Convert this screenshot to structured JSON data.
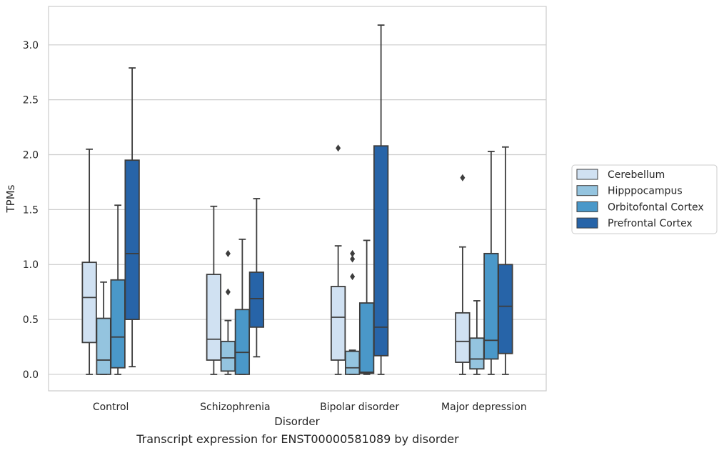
{
  "chart_data": {
    "type": "box",
    "caption": "Transcript expression for ENST00000581089 by disorder",
    "xlabel": "Disorder",
    "ylabel": "TPMs",
    "ylim": [
      -0.15,
      3.35
    ],
    "yticks": [
      0.0,
      0.5,
      1.0,
      1.5,
      2.0,
      2.5,
      3.0
    ],
    "ytick_labels": [
      "0.0",
      "0.5",
      "1.0",
      "1.5",
      "2.0",
      "2.5",
      "3.0"
    ],
    "grid": "horizontal",
    "legend_position": "right",
    "categories": [
      "Control",
      "Schizophrenia",
      "Bipolar disorder",
      "Major depression"
    ],
    "series": [
      {
        "name": "Cerebellum",
        "color": "#d0e1f2",
        "boxes": [
          {
            "whislo": 0.0,
            "q1": 0.29,
            "median": 0.7,
            "q3": 1.02,
            "whishi": 2.05,
            "fliers": []
          },
          {
            "whislo": 0.0,
            "q1": 0.13,
            "median": 0.32,
            "q3": 0.91,
            "whishi": 1.53,
            "fliers": []
          },
          {
            "whislo": 0.0,
            "q1": 0.13,
            "median": 0.52,
            "q3": 0.8,
            "whishi": 1.17,
            "fliers": [
              2.06
            ]
          },
          {
            "whislo": 0.0,
            "q1": 0.11,
            "median": 0.3,
            "q3": 0.56,
            "whishi": 1.16,
            "fliers": [
              1.79
            ]
          }
        ]
      },
      {
        "name": "Hipppocampus",
        "color": "#94c4df",
        "boxes": [
          {
            "whislo": 0.0,
            "q1": 0.0,
            "median": 0.13,
            "q3": 0.51,
            "whishi": 0.84,
            "fliers": []
          },
          {
            "whislo": 0.0,
            "q1": 0.03,
            "median": 0.15,
            "q3": 0.3,
            "whishi": 0.49,
            "fliers": [
              0.75,
              1.1
            ]
          },
          {
            "whislo": 0.0,
            "q1": 0.0,
            "median": 0.06,
            "q3": 0.21,
            "whishi": 0.22,
            "fliers": [
              0.89,
              1.05,
              1.1
            ]
          },
          {
            "whislo": 0.0,
            "q1": 0.05,
            "median": 0.14,
            "q3": 0.33,
            "whishi": 0.67,
            "fliers": []
          }
        ]
      },
      {
        "name": "Orbitofontal Cortex",
        "color": "#4a98c9",
        "boxes": [
          {
            "whislo": 0.0,
            "q1": 0.06,
            "median": 0.34,
            "q3": 0.86,
            "whishi": 1.54,
            "fliers": []
          },
          {
            "whislo": 0.0,
            "q1": 0.0,
            "median": 0.2,
            "q3": 0.59,
            "whishi": 1.23,
            "fliers": []
          },
          {
            "whislo": 0.0,
            "q1": 0.01,
            "median": 0.02,
            "q3": 0.65,
            "whishi": 1.22,
            "fliers": []
          },
          {
            "whislo": 0.0,
            "q1": 0.14,
            "median": 0.31,
            "q3": 1.1,
            "whishi": 2.03,
            "fliers": []
          }
        ]
      },
      {
        "name": "Prefrontal Cortex",
        "color": "#2764a8",
        "boxes": [
          {
            "whislo": 0.07,
            "q1": 0.5,
            "median": 1.1,
            "q3": 1.95,
            "whishi": 2.79,
            "fliers": []
          },
          {
            "whislo": 0.16,
            "q1": 0.43,
            "median": 0.69,
            "q3": 0.93,
            "whishi": 1.6,
            "fliers": []
          },
          {
            "whislo": 0.0,
            "q1": 0.17,
            "median": 0.43,
            "q3": 2.08,
            "whishi": 3.18,
            "fliers": []
          },
          {
            "whislo": 0.0,
            "q1": 0.19,
            "median": 0.62,
            "q3": 1.0,
            "whishi": 2.07,
            "fliers": []
          }
        ]
      }
    ]
  }
}
